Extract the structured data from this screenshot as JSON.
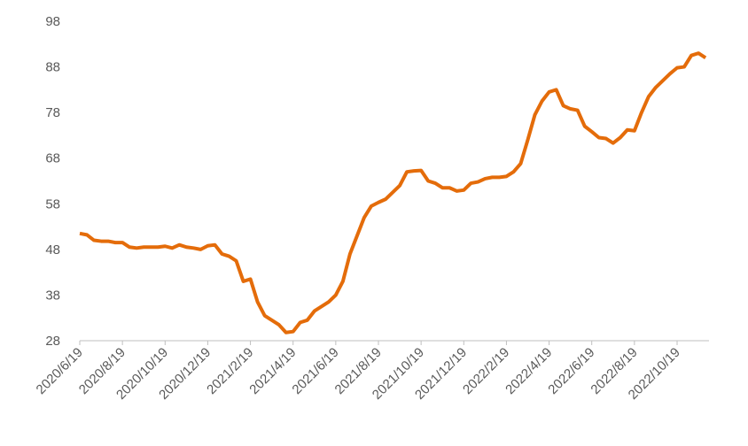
{
  "chart_data": {
    "type": "line",
    "categories": [
      "2020/6/19",
      null,
      null,
      null,
      null,
      null,
      "2020/8/19",
      null,
      null,
      null,
      null,
      null,
      "2020/10/19",
      null,
      null,
      null,
      null,
      null,
      "2020/12/19",
      null,
      null,
      null,
      null,
      null,
      "2021/2/19",
      null,
      null,
      null,
      null,
      null,
      "2021/4/19",
      null,
      null,
      null,
      null,
      null,
      "2021/6/19",
      null,
      null,
      null,
      null,
      null,
      "2021/8/19",
      null,
      null,
      null,
      null,
      null,
      "2021/10/19",
      null,
      null,
      null,
      null,
      null,
      "2021/12/19",
      null,
      null,
      null,
      null,
      null,
      "2022/2/19",
      null,
      null,
      null,
      null,
      null,
      "2022/4/19",
      null,
      null,
      null,
      null,
      null,
      "2022/6/19",
      null,
      null,
      null,
      null,
      null,
      "2022/8/19",
      null,
      null,
      null,
      null,
      null,
      "2022/10/19",
      null,
      null,
      null,
      null
    ],
    "series": [
      {
        "color": "#e46c0a",
        "values": [
          51.5,
          51.2,
          50,
          49.8,
          49.8,
          49.5,
          49.5,
          48.5,
          48.3,
          48.5,
          48.5,
          48.5,
          48.7,
          48.3,
          49,
          48.5,
          48.3,
          48,
          48.8,
          49,
          47,
          46.5,
          45.5,
          41,
          41.5,
          36.5,
          33.5,
          32.5,
          31.5,
          29.8,
          30,
          32,
          32.5,
          34.5,
          35.5,
          36.5,
          38,
          41,
          47,
          51,
          55,
          57.5,
          58.3,
          59,
          60.5,
          62,
          65,
          65.2,
          65.3,
          63,
          62.5,
          61.5,
          61.5,
          60.8,
          61,
          62.5,
          62.8,
          63.5,
          63.8,
          63.8,
          64,
          65,
          66.8,
          72,
          77.5,
          80.5,
          82.5,
          83,
          79.5,
          78.8,
          78.5,
          75,
          73.8,
          72.5,
          72.3,
          71.3,
          72.5,
          74.2,
          74,
          78,
          81.5,
          83.5,
          85,
          86.5,
          87.8,
          88,
          90.5,
          91,
          90
        ]
      }
    ],
    "ylim": [
      28,
      98
    ],
    "yticks": [
      28,
      38,
      48,
      58,
      68,
      78,
      88,
      98
    ],
    "grid": false
  }
}
